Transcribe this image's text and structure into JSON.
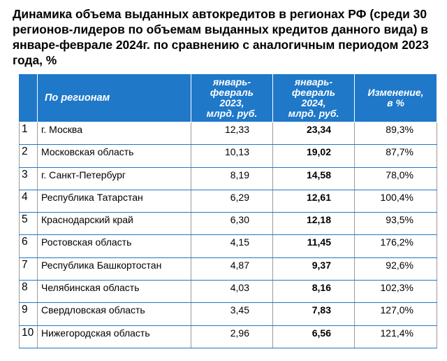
{
  "title": "Динамика объема выданных автокредитов в регионах РФ (среди 30 регионов-лидеров по объемам выданных кредитов данного вида) в январе-феврале 2024г. по сравнению с аналогичным периодом 2023 года, %",
  "colors": {
    "header_background": "#1f78c8",
    "header_text": "#ffffff",
    "row_border": "#1f78c8"
  },
  "table": {
    "headers": {
      "region": "По регионам",
      "jan_feb_2023": [
        "январь-",
        "февраль",
        "2023,",
        "млрд. руб."
      ],
      "jan_feb_2024": [
        "январь-",
        "февраль",
        "2024,",
        "млрд. руб."
      ],
      "change": [
        "Изменение,",
        "в %"
      ]
    },
    "rows": [
      {
        "num": "1",
        "region": "г. Москва",
        "y2023": "12,33",
        "y2024": "23,34",
        "change": "89,3%"
      },
      {
        "num": "2",
        "region": "Московская область",
        "y2023": "10,13",
        "y2024": "19,02",
        "change": "87,7%"
      },
      {
        "num": "3",
        "region": "г. Санкт-Петербург",
        "y2023": "8,19",
        "y2024": "14,58",
        "change": "78,0%"
      },
      {
        "num": "4",
        "region": "Республика Татарстан",
        "y2023": "6,29",
        "y2024": "12,61",
        "change": "100,4%"
      },
      {
        "num": "5",
        "region": "Краснодарский край",
        "y2023": "6,30",
        "y2024": "12,18",
        "change": "93,5%"
      },
      {
        "num": "6",
        "region": "Ростовская область",
        "y2023": "4,15",
        "y2024": "11,45",
        "change": "176,2%"
      },
      {
        "num": "7",
        "region": "Республика Башкортостан",
        "y2023": "4,87",
        "y2024": "9,37",
        "change": "92,6%"
      },
      {
        "num": "8",
        "region": "Челябинская область",
        "y2023": "4,03",
        "y2024": "8,16",
        "change": "102,3%"
      },
      {
        "num": "9",
        "region": "Свердловская область",
        "y2023": "3,45",
        "y2024": "7,83",
        "change": "127,0%"
      },
      {
        "num": "10",
        "region": "Нижегородская область",
        "y2023": "2,96",
        "y2024": "6,56",
        "change": "121,4%"
      }
    ]
  }
}
